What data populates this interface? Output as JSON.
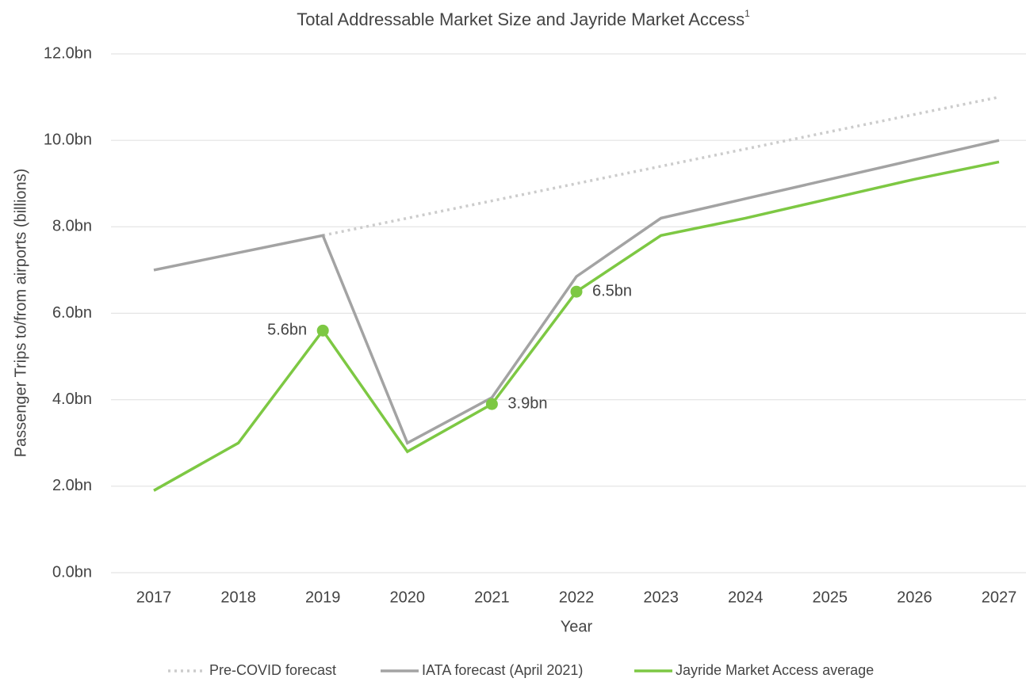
{
  "chart_data": {
    "type": "line",
    "title": "Total Addressable Market Size and Jayride Market Access",
    "title_footnote": "1",
    "x_label": "Year",
    "y_label": "Passenger Trips to/from airports (billions)",
    "categories": [
      "2017",
      "2018",
      "2019",
      "2020",
      "2021",
      "2022",
      "2023",
      "2024",
      "2025",
      "2026",
      "2027"
    ],
    "ylim": [
      0,
      12
    ],
    "yticks": [
      {
        "value": 0,
        "label": "0.0bn"
      },
      {
        "value": 2,
        "label": "2.0bn"
      },
      {
        "value": 4,
        "label": "4.0bn"
      },
      {
        "value": 6,
        "label": "6.0bn"
      },
      {
        "value": 8,
        "label": "8.0bn"
      },
      {
        "value": 10,
        "label": "10.0bn"
      },
      {
        "value": 12,
        "label": "12.0bn"
      }
    ],
    "grid": true,
    "legend": "bottom",
    "series": [
      {
        "name": "Pre-COVID forecast",
        "color": "#cccccc",
        "dash": "dotted",
        "values": [
          null,
          null,
          7.8,
          8.2,
          8.6,
          9.0,
          9.4,
          9.8,
          10.2,
          10.6,
          11.0
        ]
      },
      {
        "name": "IATA forecast (April 2021)",
        "color": "#a3a3a3",
        "dash": "solid",
        "values": [
          7.0,
          7.4,
          7.8,
          3.0,
          4.05,
          6.85,
          8.2,
          8.65,
          9.1,
          9.55,
          10.0
        ]
      },
      {
        "name": "Jayride Market Access average",
        "color": "#7dc843",
        "dash": "solid",
        "values": [
          1.9,
          3.0,
          5.6,
          2.8,
          3.9,
          6.5,
          7.8,
          8.2,
          8.65,
          9.1,
          9.5
        ],
        "value_labels": [
          null,
          null,
          "5.6bn",
          null,
          "3.9bn",
          "6.5bn",
          null,
          null,
          null,
          null,
          null
        ]
      }
    ]
  }
}
